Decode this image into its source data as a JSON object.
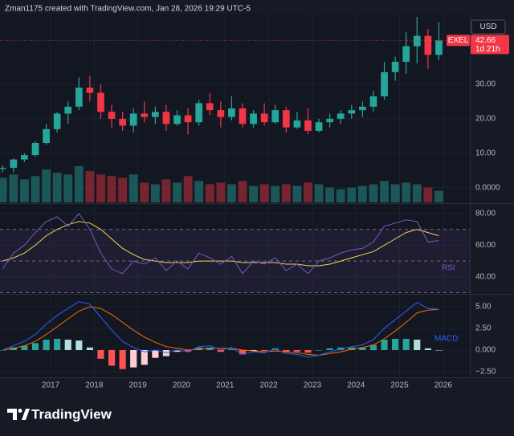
{
  "header": "Zman1175 created with TradingView.com, Jan 28, 2026 19:29 UTC-5",
  "brand": "TradingView",
  "chart_data": [
    {
      "type": "candlestick",
      "symbol": "EXEL",
      "currency": "USD",
      "countdown": "1d 21h",
      "up_color": "#26a69a",
      "down_color": "#f23645",
      "grid": true,
      "xlim": [
        2015.84,
        2026.61
      ],
      "xticks": [
        2017,
        2018,
        2019,
        2020,
        2021,
        2022,
        2023,
        2024,
        2025,
        2026
      ],
      "ylim": [
        -4.2,
        50.2
      ],
      "yticks": [
        {
          "value": 0,
          "label": "0.0000"
        },
        {
          "value": 10,
          "label": "10.00"
        },
        {
          "value": 20,
          "label": "20.00"
        },
        {
          "value": 30,
          "label": "30.00"
        }
      ],
      "x": [
        2015.9,
        2016.15,
        2016.4,
        2016.65,
        2016.9,
        2017.15,
        2017.4,
        2017.65,
        2017.9,
        2018.15,
        2018.4,
        2018.65,
        2018.9,
        2019.15,
        2019.4,
        2019.65,
        2019.9,
        2020.15,
        2020.4,
        2020.65,
        2020.9,
        2021.15,
        2021.4,
        2021.65,
        2021.9,
        2022.15,
        2022.4,
        2022.65,
        2022.9,
        2023.15,
        2023.4,
        2023.65,
        2023.9,
        2024.15,
        2024.4,
        2024.65,
        2024.9,
        2025.15,
        2025.4,
        2025.65,
        2025.9
      ],
      "open": [
        5.5,
        5.8,
        8.2,
        9.5,
        13,
        17,
        21.5,
        23.5,
        29,
        27.5,
        22,
        20,
        18,
        21.5,
        20.5,
        22,
        18.5,
        21,
        19,
        24.5,
        22.5,
        20.5,
        23,
        18.5,
        21.5,
        19,
        22.5,
        17.5,
        19.5,
        16.5,
        19,
        20,
        21.5,
        22.5,
        23.5,
        26.5,
        33.5,
        36.5,
        41,
        44,
        38.5
      ],
      "high": [
        6.5,
        8.5,
        10,
        13.5,
        18.5,
        22,
        25,
        32,
        32.5,
        30,
        24,
        22,
        23,
        25,
        23.5,
        24,
        22.5,
        23,
        25.5,
        27.5,
        25,
        26.5,
        24.5,
        22.5,
        24.5,
        24,
        23.5,
        22,
        23,
        20,
        21.5,
        22.5,
        24,
        25,
        28,
        36.5,
        38,
        45,
        49.5,
        46,
        48
      ],
      "low": [
        4.5,
        4.5,
        7.5,
        9,
        12.5,
        16,
        18.5,
        22.5,
        25,
        20,
        17.5,
        16.5,
        16,
        19,
        18.5,
        16.5,
        18,
        15.5,
        18,
        21,
        17.5,
        19.5,
        17.5,
        17.5,
        18,
        18.5,
        16,
        17,
        15.5,
        16,
        17.5,
        18.5,
        20,
        20.5,
        22,
        25.5,
        31,
        33,
        36,
        34.5,
        37
      ],
      "close": [
        5.8,
        8.2,
        9.5,
        13,
        17,
        21.5,
        23.5,
        29,
        27.5,
        22,
        20,
        18,
        21.5,
        20.5,
        22,
        18.5,
        21,
        19,
        24.5,
        22.5,
        20.5,
        23,
        18.5,
        21.5,
        19,
        22.5,
        17.5,
        19.5,
        16.5,
        19,
        20,
        21.5,
        22.5,
        23.5,
        26.5,
        33.5,
        36.5,
        41,
        44,
        38.5,
        42.66
      ],
      "volume": [
        150,
        170,
        140,
        160,
        200,
        180,
        170,
        220,
        190,
        170,
        160,
        150,
        170,
        120,
        110,
        140,
        120,
        160,
        130,
        110,
        120,
        110,
        130,
        100,
        110,
        100,
        110,
        100,
        120,
        110,
        90,
        80,
        90,
        100,
        110,
        130,
        110,
        120,
        110,
        90,
        70
      ]
    },
    {
      "type": "line",
      "ylim": [
        29.2,
        85.6
      ],
      "yticks": [
        {
          "value": 40,
          "label": "40.00"
        },
        {
          "value": 60,
          "label": "60.00"
        },
        {
          "value": 80,
          "label": "80.00"
        }
      ],
      "levels": [
        70,
        50,
        30
      ],
      "band_color": "#7e57c2",
      "x": [
        2015.9,
        2016.15,
        2016.4,
        2016.65,
        2016.9,
        2017.15,
        2017.4,
        2017.65,
        2017.9,
        2018.15,
        2018.4,
        2018.65,
        2018.9,
        2019.15,
        2019.4,
        2019.65,
        2019.9,
        2020.15,
        2020.4,
        2020.65,
        2020.9,
        2021.15,
        2021.4,
        2021.65,
        2021.9,
        2022.15,
        2022.4,
        2022.65,
        2022.9,
        2023.15,
        2023.4,
        2023.65,
        2023.9,
        2024.15,
        2024.4,
        2024.65,
        2024.9,
        2025.15,
        2025.4,
        2025.65,
        2025.9
      ],
      "series": [
        {
          "name": "RSI",
          "color": "#7e57c2",
          "values": [
            45,
            55,
            60,
            68,
            75,
            78,
            72,
            80,
            70,
            55,
            45,
            42,
            50,
            48,
            52,
            44,
            50,
            45,
            55,
            52,
            48,
            53,
            42,
            50,
            48,
            52,
            44,
            48,
            42,
            50,
            52,
            55,
            57,
            58,
            62,
            72,
            74,
            76,
            75,
            62,
            63
          ]
        },
        {
          "color": "#f7d54f",
          "values": [
            50,
            52,
            55,
            60,
            66,
            70,
            73,
            75,
            74,
            70,
            64,
            58,
            54,
            51,
            50,
            49,
            49,
            49,
            50,
            50,
            50,
            50,
            49,
            49,
            49,
            49,
            48,
            48,
            47,
            47,
            48,
            50,
            52,
            54,
            56,
            60,
            64,
            68,
            70,
            68,
            66
          ]
        }
      ]
    },
    {
      "type": "macd",
      "ylim": [
        -3.15,
        6.3
      ],
      "yticks": [
        {
          "value": -2.5,
          "label": "−2.50"
        },
        {
          "value": 0,
          "label": "0.000"
        },
        {
          "value": 2.5,
          "label": "2.50"
        },
        {
          "value": 5,
          "label": "5.00"
        }
      ],
      "x": [
        2015.9,
        2016.15,
        2016.4,
        2016.65,
        2016.9,
        2017.15,
        2017.4,
        2017.65,
        2017.9,
        2018.15,
        2018.4,
        2018.65,
        2018.9,
        2019.15,
        2019.4,
        2019.65,
        2019.9,
        2020.15,
        2020.4,
        2020.65,
        2020.9,
        2021.15,
        2021.4,
        2021.65,
        2021.9,
        2022.15,
        2022.4,
        2022.65,
        2022.9,
        2023.15,
        2023.4,
        2023.65,
        2023.9,
        2024.15,
        2024.4,
        2024.65,
        2024.9,
        2025.15,
        2025.4,
        2025.65,
        2025.9
      ],
      "histogram": [
        0,
        0.3,
        0.5,
        0.8,
        1.2,
        1.3,
        1.2,
        1.1,
        0.3,
        -1,
        -1.8,
        -2.2,
        -2,
        -1.7,
        -0.9,
        -0.7,
        -0.2,
        -0.2,
        0.3,
        0.3,
        -0.2,
        0.1,
        -0.5,
        -0.1,
        -0.1,
        0.2,
        -0.2,
        -0.2,
        -0.3,
        0,
        0.2,
        0.3,
        0.3,
        0.3,
        0.6,
        1.2,
        1.3,
        1.3,
        1.2,
        0.2,
        0
      ],
      "histogram_colors": [
        "#26a69a",
        "#b2dfdb",
        "#ff5252",
        "#ffcdd2"
      ],
      "series": [
        {
          "name": "MACD",
          "color": "#2962ff",
          "values": [
            0,
            0.5,
            1,
            1.8,
            3,
            4,
            4.8,
            5.6,
            5.3,
            3.8,
            2.3,
            1,
            0.3,
            -0.2,
            0,
            -0.3,
            0,
            -0.2,
            0.4,
            0.5,
            0,
            0.3,
            -0.5,
            -0.2,
            -0.3,
            0.1,
            -0.4,
            -0.5,
            -0.8,
            -0.6,
            -0.2,
            0.1,
            0.4,
            0.6,
            1.2,
            2.5,
            3.5,
            4.5,
            5.5,
            4.8,
            4.7
          ]
        },
        {
          "color": "#ff6d00",
          "values": [
            0,
            0.2,
            0.5,
            1,
            1.8,
            2.7,
            3.6,
            4.5,
            5,
            4.8,
            4.1,
            3.2,
            2.3,
            1.5,
            0.9,
            0.4,
            0.2,
            0,
            0.1,
            0.2,
            0.2,
            0.2,
            0,
            -0.1,
            -0.2,
            -0.1,
            -0.2,
            -0.3,
            -0.5,
            -0.6,
            -0.4,
            -0.2,
            0.1,
            0.3,
            0.6,
            1.3,
            2.2,
            3.2,
            4.3,
            4.6,
            4.7
          ]
        }
      ]
    }
  ]
}
